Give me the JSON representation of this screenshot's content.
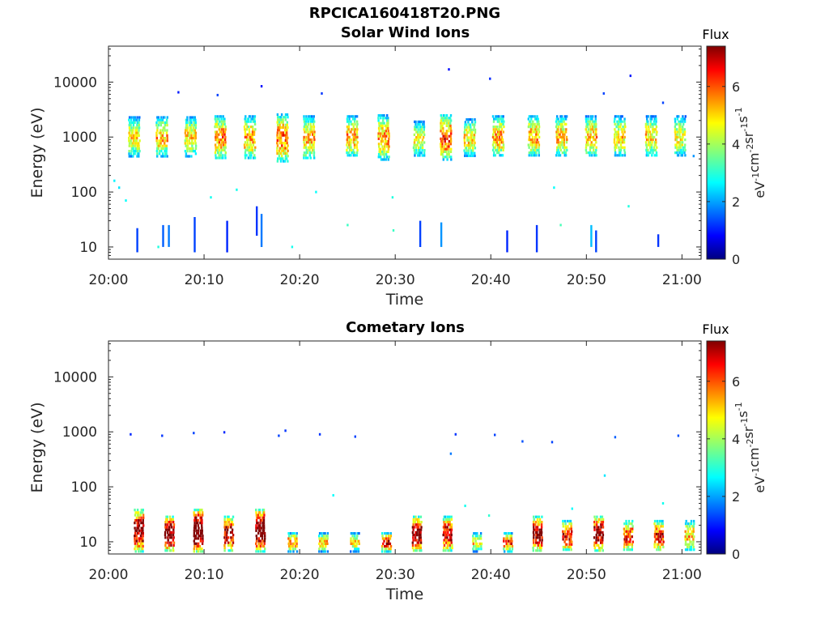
{
  "figure": {
    "title": "RPCICA160418T20.PNG"
  },
  "chart_data": [
    {
      "type": "heatmap",
      "title": "Solar Wind Ions",
      "xlabel": "Time",
      "ylabel": "Energy (eV)",
      "x_ticks": [
        "20:00",
        "20:10",
        "20:20",
        "20:30",
        "20:40",
        "20:50",
        "21:00"
      ],
      "x_range": [
        "20:00",
        "21:02"
      ],
      "y_scale": "log",
      "y_ticks": [
        "10",
        "100",
        "1000",
        "10000"
      ],
      "y_range": [
        6,
        45000
      ],
      "colorbar": {
        "title": "Flux",
        "label": "eV-1cm-2sr-1s-1",
        "ticks": [
          "0",
          "2",
          "4",
          "6"
        ],
        "range": [
          0,
          7.4
        ],
        "colormap": "jet"
      },
      "blobs": [
        {
          "t": 2.7,
          "e_lo": 450,
          "e_hi": 2400,
          "f": 3.5
        },
        {
          "t": 5.6,
          "e_lo": 450,
          "e_hi": 2400,
          "f": 3.8
        },
        {
          "t": 8.6,
          "e_lo": 450,
          "e_hi": 2400,
          "f": 3.6
        },
        {
          "t": 11.7,
          "e_lo": 400,
          "e_hi": 2500,
          "f": 4.1
        },
        {
          "t": 14.8,
          "e_lo": 400,
          "e_hi": 2500,
          "f": 3.9
        },
        {
          "t": 18.2,
          "e_lo": 350,
          "e_hi": 2700,
          "f": 4.3
        },
        {
          "t": 21.0,
          "e_lo": 400,
          "e_hi": 2500,
          "f": 3.8
        },
        {
          "t": 25.5,
          "e_lo": 450,
          "e_hi": 2500,
          "f": 3.9
        },
        {
          "t": 28.8,
          "e_lo": 400,
          "e_hi": 2600,
          "f": 3.9
        },
        {
          "t": 32.5,
          "e_lo": 450,
          "e_hi": 2000,
          "f": 3.3
        },
        {
          "t": 35.3,
          "e_lo": 400,
          "e_hi": 2600,
          "f": 4.5
        },
        {
          "t": 37.8,
          "e_lo": 450,
          "e_hi": 2200,
          "f": 3.6
        },
        {
          "t": 40.8,
          "e_lo": 450,
          "e_hi": 2500,
          "f": 3.9
        },
        {
          "t": 44.5,
          "e_lo": 450,
          "e_hi": 2500,
          "f": 3.9
        },
        {
          "t": 47.4,
          "e_lo": 450,
          "e_hi": 2500,
          "f": 3.8
        },
        {
          "t": 50.5,
          "e_lo": 450,
          "e_hi": 2500,
          "f": 3.8
        },
        {
          "t": 53.5,
          "e_lo": 450,
          "e_hi": 2500,
          "f": 3.6
        },
        {
          "t": 56.8,
          "e_lo": 450,
          "e_hi": 2500,
          "f": 3.6
        },
        {
          "t": 59.8,
          "e_lo": 450,
          "e_hi": 2500,
          "f": 3.4
        }
      ],
      "streaks": [
        {
          "t": 3.0,
          "e_lo": 8,
          "e_hi": 22,
          "f": 1.4
        },
        {
          "t": 5.7,
          "e_lo": 10,
          "e_hi": 25,
          "f": 1.6
        },
        {
          "t": 6.3,
          "e_lo": 10,
          "e_hi": 25,
          "f": 1.8
        },
        {
          "t": 9.0,
          "e_lo": 8,
          "e_hi": 35,
          "f": 1.4
        },
        {
          "t": 12.4,
          "e_lo": 8,
          "e_hi": 30,
          "f": 1.2
        },
        {
          "t": 15.5,
          "e_lo": 16,
          "e_hi": 55,
          "f": 1.3
        },
        {
          "t": 16.0,
          "e_lo": 10,
          "e_hi": 40,
          "f": 1.8
        },
        {
          "t": 32.6,
          "e_lo": 10,
          "e_hi": 30,
          "f": 1.4
        },
        {
          "t": 34.8,
          "e_lo": 10,
          "e_hi": 28,
          "f": 2.0
        },
        {
          "t": 41.7,
          "e_lo": 8,
          "e_hi": 20,
          "f": 1.2
        },
        {
          "t": 44.8,
          "e_lo": 8,
          "e_hi": 25,
          "f": 1.3
        },
        {
          "t": 50.5,
          "e_lo": 10,
          "e_hi": 25,
          "f": 2.3
        },
        {
          "t": 51.0,
          "e_lo": 8,
          "e_hi": 20,
          "f": 1.4
        },
        {
          "t": 57.5,
          "e_lo": 10,
          "e_hi": 17,
          "f": 1.3
        }
      ],
      "dots": [
        {
          "t": 7.3,
          "e": 6500,
          "f": 1.1
        },
        {
          "t": 11.4,
          "e": 5800,
          "f": 1.4
        },
        {
          "t": 16.0,
          "e": 8400,
          "f": 1.0
        },
        {
          "t": 22.3,
          "e": 6200,
          "f": 1.3
        },
        {
          "t": 35.6,
          "e": 17000,
          "f": 1.0
        },
        {
          "t": 39.9,
          "e": 11500,
          "f": 1.2
        },
        {
          "t": 51.8,
          "e": 6200,
          "f": 1.4
        },
        {
          "t": 54.6,
          "e": 13000,
          "f": 1.1
        },
        {
          "t": 58.0,
          "e": 4200,
          "f": 1.4
        },
        {
          "t": 61.2,
          "e": 450,
          "f": 2.0
        },
        {
          "t": 0.6,
          "e": 160,
          "f": 2.7
        },
        {
          "t": 1.1,
          "e": 120,
          "f": 2.6
        },
        {
          "t": 1.8,
          "e": 70,
          "f": 2.8
        },
        {
          "t": 10.7,
          "e": 80,
          "f": 2.9
        },
        {
          "t": 13.4,
          "e": 110,
          "f": 2.9
        },
        {
          "t": 21.7,
          "e": 100,
          "f": 2.8
        },
        {
          "t": 29.7,
          "e": 80,
          "f": 3.0
        },
        {
          "t": 46.6,
          "e": 120,
          "f": 2.8
        },
        {
          "t": 54.4,
          "e": 55,
          "f": 3.0
        },
        {
          "t": 25.0,
          "e": 25,
          "f": 3.2
        },
        {
          "t": 47.3,
          "e": 25,
          "f": 3.3
        },
        {
          "t": 19.2,
          "e": 10,
          "f": 2.9
        },
        {
          "t": 5.2,
          "e": 10,
          "f": 3.0
        },
        {
          "t": 29.8,
          "e": 20,
          "f": 3.2
        }
      ]
    },
    {
      "type": "heatmap",
      "title": "Cometary Ions",
      "xlabel": "Time",
      "ylabel": "Energy (eV)",
      "x_ticks": [
        "20:00",
        "20:10",
        "20:20",
        "20:30",
        "20:40",
        "20:50",
        "21:00"
      ],
      "x_range": [
        "20:00",
        "21:02"
      ],
      "y_scale": "log",
      "y_ticks": [
        "10",
        "100",
        "1000",
        "10000"
      ],
      "y_range": [
        6,
        45000
      ],
      "colorbar": {
        "title": "Flux",
        "label": "eV-1cm-2sr-1s-1",
        "ticks": [
          "0",
          "2",
          "4",
          "6"
        ],
        "range": [
          0,
          7.4
        ],
        "colormap": "jet"
      },
      "columns": [
        {
          "t": 3.2,
          "e_lo": 7,
          "e_hi": 40,
          "f": 5.8
        },
        {
          "t": 6.4,
          "e_lo": 7,
          "e_hi": 30,
          "f": 6.2
        },
        {
          "t": 9.4,
          "e_lo": 7,
          "e_hi": 40,
          "f": 6.5
        },
        {
          "t": 12.6,
          "e_lo": 7,
          "e_hi": 30,
          "f": 5.3
        },
        {
          "t": 15.9,
          "e_lo": 7,
          "e_hi": 40,
          "f": 6.3
        },
        {
          "t": 19.3,
          "e_lo": 7,
          "e_hi": 15,
          "f": 4.3
        },
        {
          "t": 22.5,
          "e_lo": 7,
          "e_hi": 15,
          "f": 3.8
        },
        {
          "t": 25.8,
          "e_lo": 7,
          "e_hi": 15,
          "f": 3.6
        },
        {
          "t": 29.1,
          "e_lo": 7,
          "e_hi": 15,
          "f": 5.0
        },
        {
          "t": 32.3,
          "e_lo": 7,
          "e_hi": 30,
          "f": 5.9
        },
        {
          "t": 35.5,
          "e_lo": 7,
          "e_hi": 30,
          "f": 5.2
        },
        {
          "t": 38.6,
          "e_lo": 7,
          "e_hi": 15,
          "f": 3.6
        },
        {
          "t": 41.8,
          "e_lo": 7,
          "e_hi": 15,
          "f": 4.4
        },
        {
          "t": 44.9,
          "e_lo": 7,
          "e_hi": 30,
          "f": 5.6
        },
        {
          "t": 48.0,
          "e_lo": 7,
          "e_hi": 25,
          "f": 4.9
        },
        {
          "t": 51.3,
          "e_lo": 7,
          "e_hi": 30,
          "f": 5.7
        },
        {
          "t": 54.4,
          "e_lo": 7,
          "e_hi": 25,
          "f": 4.7
        },
        {
          "t": 57.6,
          "e_lo": 7,
          "e_hi": 25,
          "f": 4.8
        },
        {
          "t": 60.8,
          "e_lo": 7,
          "e_hi": 25,
          "f": 3.8
        }
      ],
      "dots": [
        {
          "t": 2.3,
          "e": 900,
          "f": 1.2
        },
        {
          "t": 5.6,
          "e": 850,
          "f": 1.3
        },
        {
          "t": 8.9,
          "e": 950,
          "f": 1.4
        },
        {
          "t": 12.1,
          "e": 980,
          "f": 1.2
        },
        {
          "t": 17.8,
          "e": 850,
          "f": 1.4
        },
        {
          "t": 18.5,
          "e": 1050,
          "f": 1.3
        },
        {
          "t": 22.1,
          "e": 900,
          "f": 1.3
        },
        {
          "t": 25.8,
          "e": 820,
          "f": 1.4
        },
        {
          "t": 36.3,
          "e": 900,
          "f": 1.3
        },
        {
          "t": 40.4,
          "e": 880,
          "f": 1.4
        },
        {
          "t": 43.3,
          "e": 670,
          "f": 1.5
        },
        {
          "t": 46.4,
          "e": 650,
          "f": 1.4
        },
        {
          "t": 53.0,
          "e": 800,
          "f": 1.6
        },
        {
          "t": 59.6,
          "e": 850,
          "f": 1.5
        },
        {
          "t": 35.8,
          "e": 400,
          "f": 1.8
        },
        {
          "t": 51.9,
          "e": 160,
          "f": 2.6
        },
        {
          "t": 23.5,
          "e": 70,
          "f": 2.8
        },
        {
          "t": 37.3,
          "e": 45,
          "f": 2.9
        },
        {
          "t": 39.8,
          "e": 30,
          "f": 3.1
        },
        {
          "t": 48.5,
          "e": 40,
          "f": 2.8
        },
        {
          "t": 58.0,
          "e": 50,
          "f": 2.9
        }
      ]
    }
  ]
}
